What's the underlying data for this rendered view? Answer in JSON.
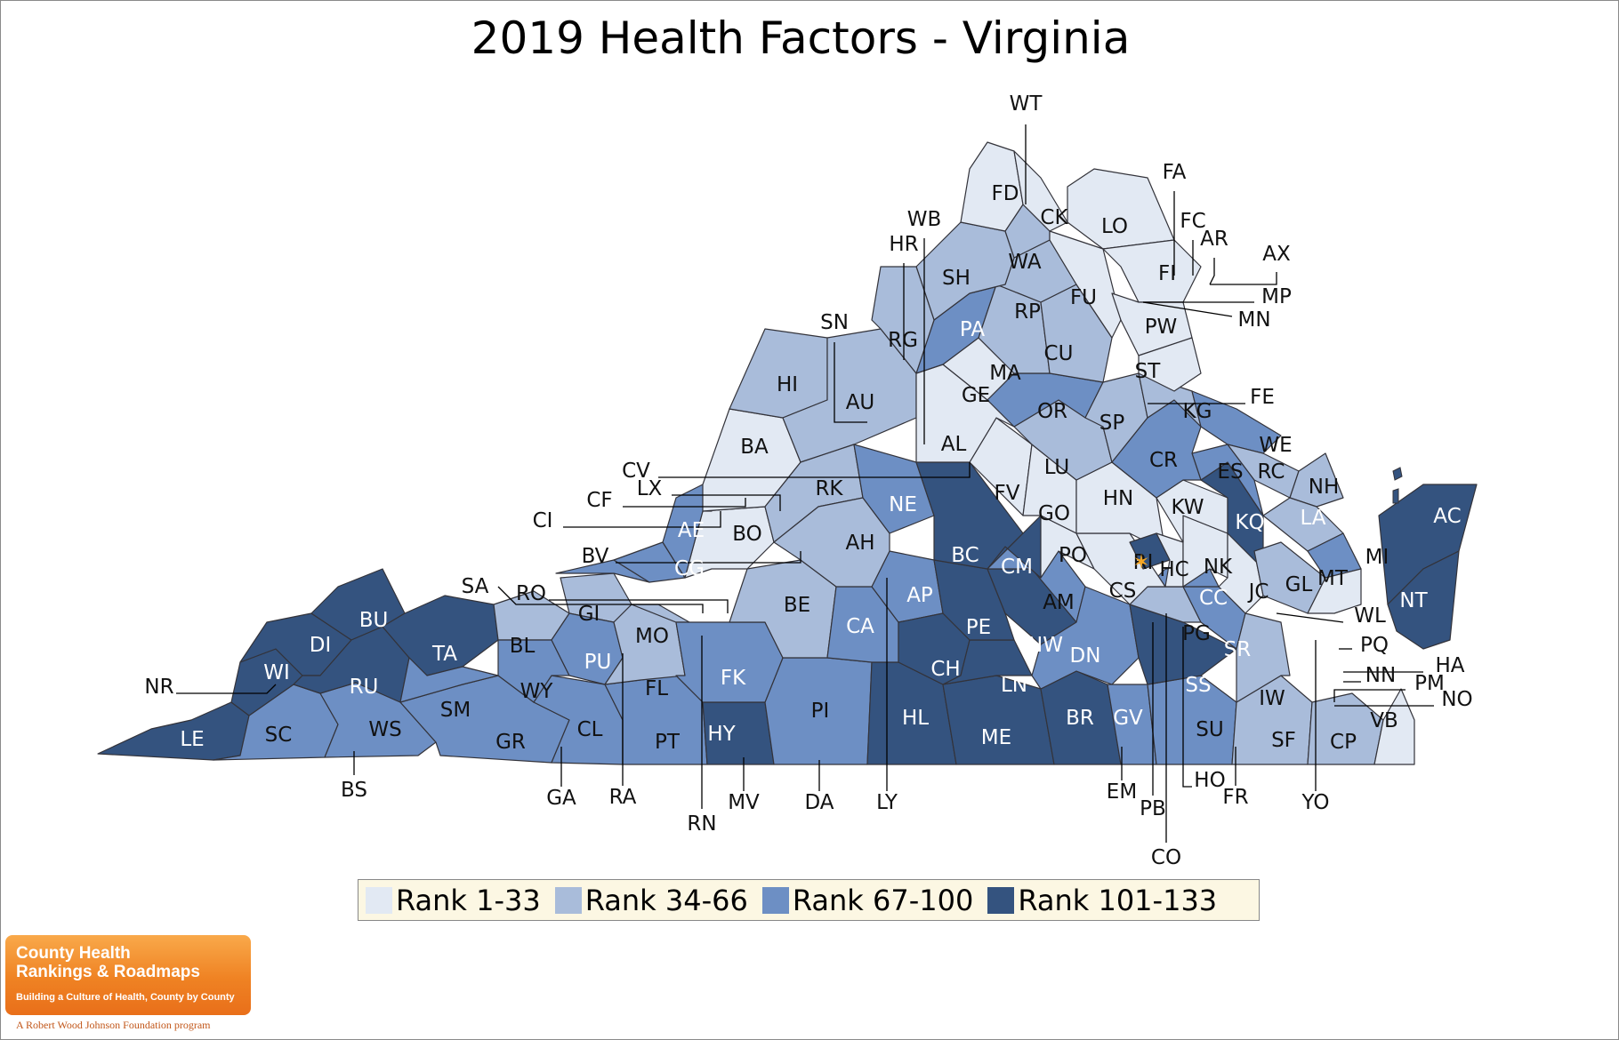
{
  "title": "2019 Health Factors - Virginia",
  "colors": {
    "rank_1_33": "#e2e9f3",
    "rank_34_66": "#a9bcda",
    "rank_67_100": "#6d8fc4",
    "rank_101_133": "#34537f",
    "border": "#33333a",
    "legend_bg": "#fcf7e3",
    "highlight": "#f5a623"
  },
  "legend": [
    {
      "label": "Rank 1-33",
      "color": "#e2e9f3"
    },
    {
      "label": "Rank 34-66",
      "color": "#a9bcda"
    },
    {
      "label": "Rank 67-100",
      "color": "#6d8fc4"
    },
    {
      "label": "Rank 101-133",
      "color": "#34537f"
    }
  ],
  "counties": {
    "FD": "FD",
    "CK": "CK",
    "LO": "LO",
    "WA": "WA",
    "SH": "SH",
    "FU": "FU",
    "FI": "FI",
    "RP": "RP",
    "PA": "PA",
    "RG": "RG",
    "CU": "CU",
    "PW": "PW",
    "ST": "ST",
    "HI": "HI",
    "AU": "AU",
    "MA": "MA",
    "GE": "GE",
    "OR": "OR",
    "SP": "SP",
    "KG": "KG",
    "WE": "WE",
    "BA": "BA",
    "AL": "AL",
    "LU": "LU",
    "CR": "CR",
    "ES": "ES",
    "RC": "RC",
    "NH": "NH",
    "RK": "RK",
    "NE": "NE",
    "FV": "FV",
    "HN": "HN",
    "KW": "KW",
    "KQ": "KQ",
    "LA": "LA",
    "AC": "AC",
    "AE": "AE",
    "BO": "BO",
    "AH": "AH",
    "BC": "BC",
    "CM": "CM",
    "GO": "GO",
    "PO": "PO",
    "RI": "RI",
    "HC": "HC",
    "NK": "NK",
    "MI": "MI",
    "CG": "CG",
    "GL": "GL",
    "MT": "MT",
    "JC": "JC",
    "CS": "CS",
    "NT": "NT",
    "BU": "BU",
    "GI": "GI",
    "BE": "BE",
    "AP": "AP",
    "AM": "AM",
    "CC": "CC",
    "DI": "DI",
    "TA": "TA",
    "BL": "BL",
    "MO": "MO",
    "CA": "CA",
    "PE": "PE",
    "NW": "NW",
    "PG": "PG",
    "SR": "SR",
    "WI": "WI",
    "RU": "RU",
    "PU": "PU",
    "FK": "FK",
    "DN": "DN",
    "CH": "CH",
    "LN": "LN",
    "SS": "SS",
    "FL": "FL",
    "SM": "SM",
    "WY": "WY",
    "PI": "PI",
    "HL": "HL",
    "BR": "BR",
    "GV": "GV",
    "IW": "IW",
    "VB": "VB",
    "LE": "LE",
    "SC": "SC",
    "WS": "WS",
    "GR": "GR",
    "CL": "CL",
    "PT": "PT",
    "HY": "HY",
    "ME": "ME",
    "SU": "SU",
    "SF": "SF",
    "CP": "CP"
  },
  "callouts": {
    "WT": "WT",
    "FA": "FA",
    "WB": "WB",
    "FC": "FC",
    "AR": "AR",
    "HR": "HR",
    "AX": "AX",
    "MP": "MP",
    "MN": "MN",
    "SN": "SN",
    "FE": "FE",
    "CV": "CV",
    "LX": "LX",
    "CF": "CF",
    "CI": "CI",
    "BV": "BV",
    "SA": "SA",
    "RO": "RO",
    "NR": "NR",
    "WL": "WL",
    "PQ": "PQ",
    "HA": "HA",
    "NN": "NN",
    "PM": "PM",
    "NO": "NO",
    "BS": "BS",
    "GA": "GA",
    "RA": "RA",
    "RN": "RN",
    "MV": "MV",
    "DA": "DA",
    "LY": "LY",
    "EM": "EM",
    "PB": "PB",
    "HO": "HO",
    "FR": "FR",
    "YO": "YO",
    "CO": "CO"
  },
  "brand": {
    "line1": "County Health",
    "line2": "Rankings & Roadmaps",
    "tagline": "Building a Culture of Health, County by County",
    "foundation": "A Robert Wood Johnson Foundation program"
  }
}
